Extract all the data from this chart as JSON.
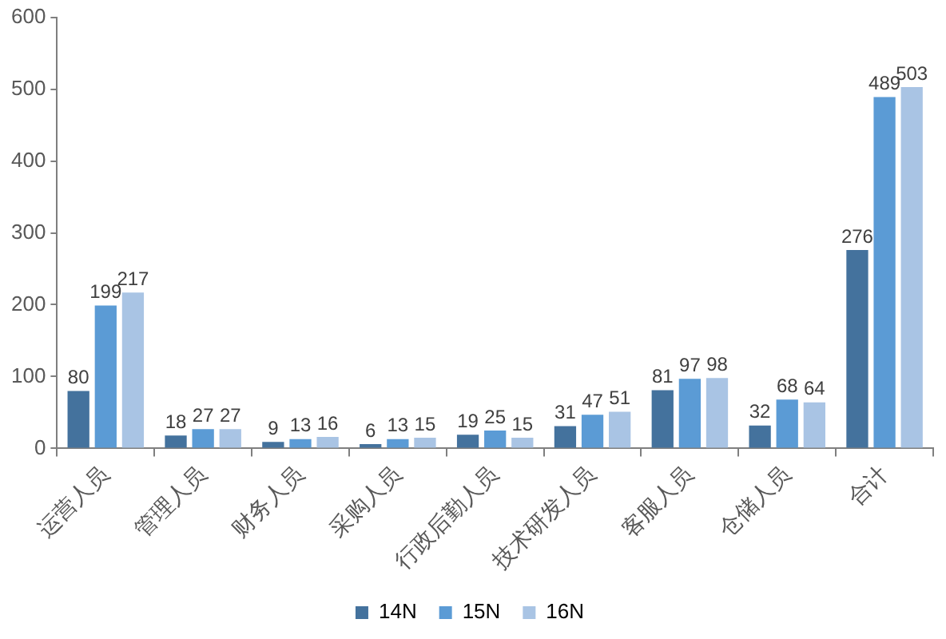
{
  "chart_data": {
    "type": "bar",
    "categories": [
      "运营人员",
      "管理人员",
      "财务人员",
      "采购人员",
      "行政后勤人员",
      "技术研发人员",
      "客服人员",
      "仓储人员",
      "合计"
    ],
    "series": [
      {
        "name": "14N",
        "color": "#44729d",
        "values": [
          80,
          18,
          9,
          6,
          19,
          31,
          81,
          32,
          276
        ]
      },
      {
        "name": "15N",
        "color": "#5b9bd5",
        "values": [
          199,
          27,
          13,
          13,
          25,
          47,
          97,
          68,
          489
        ]
      },
      {
        "name": "16N",
        "color": "#a9c4e4",
        "values": [
          217,
          27,
          16,
          15,
          15,
          51,
          98,
          64,
          503
        ]
      }
    ],
    "ylim": [
      0,
      600
    ],
    "yticks": [
      0,
      100,
      200,
      300,
      400,
      500,
      600
    ],
    "legend": "bottom",
    "data_labels": true
  }
}
